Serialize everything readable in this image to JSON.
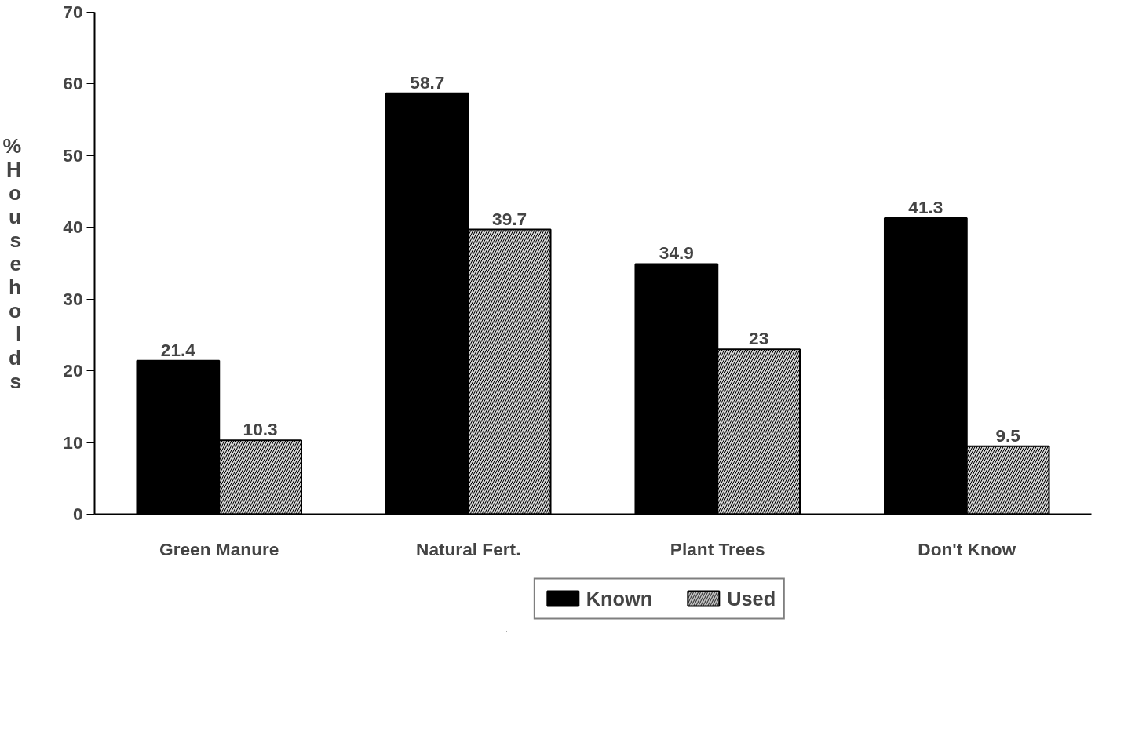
{
  "chart_data": {
    "type": "bar",
    "ylabel": "% Households",
    "categories": [
      "Green Manure",
      "Natural Fert.",
      "Plant Trees",
      "Don't Know"
    ],
    "series": [
      {
        "name": "Known",
        "color": "#000000",
        "values": [
          21.4,
          58.7,
          34.9,
          41.3
        ]
      },
      {
        "name": "Used",
        "color": "#d0d0d0",
        "values": [
          10.3,
          39.7,
          23,
          9.5
        ]
      }
    ],
    "ylim": [
      0,
      70
    ],
    "yticks": [
      0,
      10,
      20,
      30,
      40,
      50,
      60,
      70
    ],
    "data_labels": true,
    "grid": false,
    "legend": "bottom"
  }
}
